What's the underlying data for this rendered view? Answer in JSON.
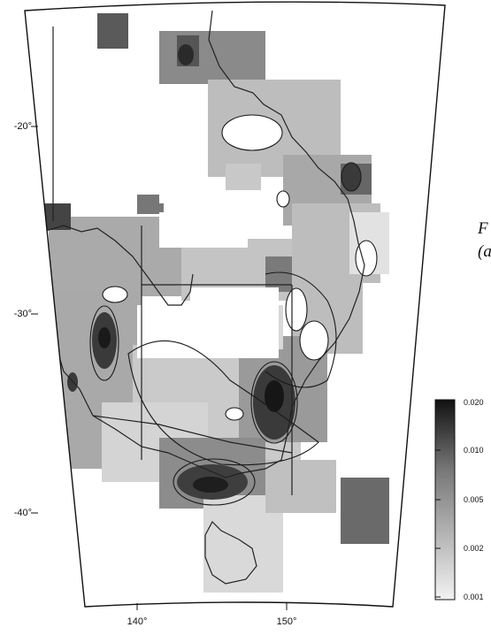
{
  "map": {
    "lat_labels": [
      "-20",
      "-30",
      "-40"
    ],
    "lon_labels": [
      "140",
      "150"
    ],
    "degree_mark": "°"
  },
  "caption": {
    "line1": "F",
    "line2": "(a"
  },
  "colorbar": {
    "ticks": [
      "0.020",
      "0.010",
      "0.005",
      "0.002",
      "0.001"
    ],
    "scale": "log",
    "colors": {
      "low": "#f2f2f2",
      "high": "#111111"
    }
  }
}
